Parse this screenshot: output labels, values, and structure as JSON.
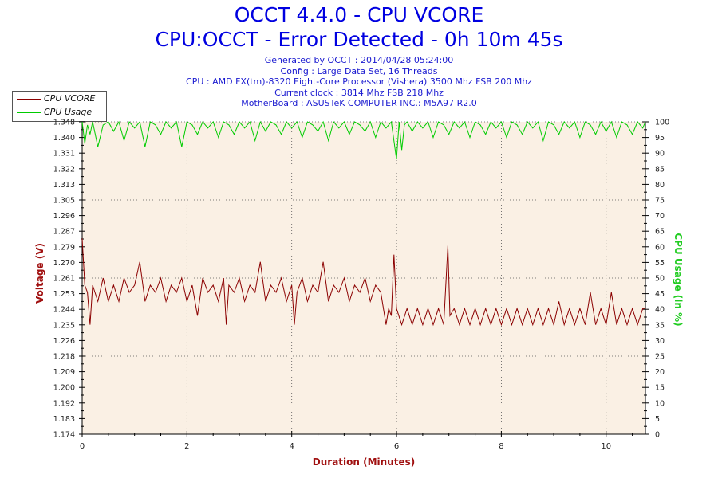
{
  "header": {
    "title": "OCCT 4.4.0 - CPU VCORE",
    "subtitle": "CPU:OCCT - Error Detected - 0h 10m 45s",
    "info_lines": [
      "Generated by OCCT : 2014/04/28 05:24:00",
      "Config : Large Data Set, 16 Threads",
      "CPU : AMD FX(tm)-8320 Eight-Core Processor (Vishera) 3500 Mhz FSB 200 Mhz",
      "Current clock : 3814 Mhz FSB 218 Mhz",
      "MotherBoard : ASUSTeK COMPUTER INC.: M5A97 R2.0"
    ]
  },
  "legend": {
    "items": [
      {
        "label": "CPU VCORE",
        "color": "#8b0000"
      },
      {
        "label": "CPU Usage",
        "color": "#00cc00"
      }
    ]
  },
  "colors": {
    "plot_background": "#faf0e4",
    "axis_label": "#a01010",
    "right_axis_label": "#22cc22",
    "vcore_line": "#8b0000",
    "usage_line": "#00cc00",
    "title": "#0000e0"
  },
  "chart_data": {
    "type": "line",
    "title": "OCCT 4.4.0 - CPU VCORE",
    "xlabel": "Duration (Minutes)",
    "ylabel": "Voltage (V)",
    "y2label": "CPU Usage (in %)",
    "xlim": [
      0,
      10.75
    ],
    "ylim": [
      1.174,
      1.348
    ],
    "y2lim": [
      0,
      100
    ],
    "x_ticks": [
      "0",
      "2",
      "4",
      "6",
      "8",
      "10"
    ],
    "x_tick_values": [
      0,
      2,
      4,
      6,
      8,
      10
    ],
    "y_ticks": [
      "1.174",
      "1.183",
      "1.192",
      "1.200",
      "1.209",
      "1.218",
      "1.226",
      "1.235",
      "1.244",
      "1.253",
      "1.261",
      "1.270",
      "1.279",
      "1.287",
      "1.296",
      "1.305",
      "1.313",
      "1.322",
      "1.331",
      "1.340",
      "1.348"
    ],
    "y2_ticks": [
      "0",
      "5",
      "10",
      "15",
      "20",
      "25",
      "30",
      "35",
      "40",
      "45",
      "50",
      "55",
      "60",
      "65",
      "70",
      "75",
      "80",
      "85",
      "90",
      "95",
      "100"
    ],
    "grid": true,
    "legend_position": "top-left",
    "series": [
      {
        "name": "CPU VCORE",
        "axis": "left",
        "points": [
          [
            0,
            1.283
          ],
          [
            0.05,
            1.257
          ],
          [
            0.1,
            1.253
          ],
          [
            0.15,
            1.235
          ],
          [
            0.2,
            1.257
          ],
          [
            0.3,
            1.248
          ],
          [
            0.4,
            1.261
          ],
          [
            0.5,
            1.248
          ],
          [
            0.6,
            1.257
          ],
          [
            0.7,
            1.248
          ],
          [
            0.8,
            1.261
          ],
          [
            0.9,
            1.253
          ],
          [
            1.0,
            1.257
          ],
          [
            1.1,
            1.27
          ],
          [
            1.2,
            1.248
          ],
          [
            1.3,
            1.257
          ],
          [
            1.4,
            1.253
          ],
          [
            1.5,
            1.261
          ],
          [
            1.6,
            1.248
          ],
          [
            1.7,
            1.257
          ],
          [
            1.8,
            1.253
          ],
          [
            1.9,
            1.261
          ],
          [
            2.0,
            1.248
          ],
          [
            2.1,
            1.257
          ],
          [
            2.2,
            1.24
          ],
          [
            2.3,
            1.261
          ],
          [
            2.4,
            1.253
          ],
          [
            2.5,
            1.257
          ],
          [
            2.6,
            1.248
          ],
          [
            2.7,
            1.261
          ],
          [
            2.75,
            1.235
          ],
          [
            2.8,
            1.257
          ],
          [
            2.9,
            1.253
          ],
          [
            3.0,
            1.261
          ],
          [
            3.1,
            1.248
          ],
          [
            3.2,
            1.257
          ],
          [
            3.3,
            1.253
          ],
          [
            3.4,
            1.27
          ],
          [
            3.5,
            1.248
          ],
          [
            3.6,
            1.257
          ],
          [
            3.7,
            1.253
          ],
          [
            3.8,
            1.261
          ],
          [
            3.9,
            1.248
          ],
          [
            4.0,
            1.257
          ],
          [
            4.05,
            1.235
          ],
          [
            4.1,
            1.253
          ],
          [
            4.2,
            1.261
          ],
          [
            4.3,
            1.248
          ],
          [
            4.4,
            1.257
          ],
          [
            4.5,
            1.253
          ],
          [
            4.6,
            1.27
          ],
          [
            4.7,
            1.248
          ],
          [
            4.8,
            1.257
          ],
          [
            4.9,
            1.253
          ],
          [
            5.0,
            1.261
          ],
          [
            5.1,
            1.248
          ],
          [
            5.2,
            1.257
          ],
          [
            5.3,
            1.253
          ],
          [
            5.4,
            1.261
          ],
          [
            5.5,
            1.248
          ],
          [
            5.6,
            1.257
          ],
          [
            5.7,
            1.253
          ],
          [
            5.8,
            1.235
          ],
          [
            5.85,
            1.244
          ],
          [
            5.9,
            1.24
          ],
          [
            5.95,
            1.274
          ],
          [
            6.0,
            1.244
          ],
          [
            6.1,
            1.235
          ],
          [
            6.2,
            1.244
          ],
          [
            6.3,
            1.235
          ],
          [
            6.4,
            1.244
          ],
          [
            6.5,
            1.235
          ],
          [
            6.6,
            1.244
          ],
          [
            6.7,
            1.235
          ],
          [
            6.8,
            1.244
          ],
          [
            6.9,
            1.235
          ],
          [
            6.98,
            1.279
          ],
          [
            7.02,
            1.24
          ],
          [
            7.1,
            1.244
          ],
          [
            7.2,
            1.235
          ],
          [
            7.3,
            1.244
          ],
          [
            7.4,
            1.235
          ],
          [
            7.5,
            1.244
          ],
          [
            7.6,
            1.235
          ],
          [
            7.7,
            1.244
          ],
          [
            7.8,
            1.235
          ],
          [
            7.9,
            1.244
          ],
          [
            8.0,
            1.235
          ],
          [
            8.1,
            1.244
          ],
          [
            8.2,
            1.235
          ],
          [
            8.3,
            1.244
          ],
          [
            8.4,
            1.235
          ],
          [
            8.5,
            1.244
          ],
          [
            8.6,
            1.235
          ],
          [
            8.7,
            1.244
          ],
          [
            8.8,
            1.235
          ],
          [
            8.9,
            1.244
          ],
          [
            9.0,
            1.235
          ],
          [
            9.1,
            1.248
          ],
          [
            9.2,
            1.235
          ],
          [
            9.3,
            1.244
          ],
          [
            9.4,
            1.235
          ],
          [
            9.5,
            1.244
          ],
          [
            9.6,
            1.235
          ],
          [
            9.7,
            1.253
          ],
          [
            9.8,
            1.235
          ],
          [
            9.9,
            1.244
          ],
          [
            10.0,
            1.235
          ],
          [
            10.1,
            1.253
          ],
          [
            10.2,
            1.235
          ],
          [
            10.3,
            1.244
          ],
          [
            10.4,
            1.235
          ],
          [
            10.5,
            1.244
          ],
          [
            10.6,
            1.235
          ],
          [
            10.7,
            1.244
          ],
          [
            10.75,
            1.244
          ]
        ]
      },
      {
        "name": "CPU Usage",
        "axis": "right",
        "points": [
          [
            0,
            100
          ],
          [
            0.05,
            93
          ],
          [
            0.1,
            99
          ],
          [
            0.15,
            96
          ],
          [
            0.2,
            100
          ],
          [
            0.3,
            92
          ],
          [
            0.4,
            99
          ],
          [
            0.5,
            100
          ],
          [
            0.6,
            97
          ],
          [
            0.7,
            100
          ],
          [
            0.8,
            94
          ],
          [
            0.9,
            100
          ],
          [
            1.0,
            98
          ],
          [
            1.1,
            100
          ],
          [
            1.2,
            92
          ],
          [
            1.3,
            100
          ],
          [
            1.4,
            99
          ],
          [
            1.5,
            96
          ],
          [
            1.6,
            100
          ],
          [
            1.7,
            98
          ],
          [
            1.8,
            100
          ],
          [
            1.9,
            92
          ],
          [
            2.0,
            100
          ],
          [
            2.1,
            99
          ],
          [
            2.2,
            96
          ],
          [
            2.3,
            100
          ],
          [
            2.4,
            98
          ],
          [
            2.5,
            100
          ],
          [
            2.6,
            95
          ],
          [
            2.7,
            100
          ],
          [
            2.8,
            99
          ],
          [
            2.9,
            96
          ],
          [
            3.0,
            100
          ],
          [
            3.1,
            98
          ],
          [
            3.2,
            100
          ],
          [
            3.3,
            94
          ],
          [
            3.4,
            100
          ],
          [
            3.5,
            97
          ],
          [
            3.6,
            100
          ],
          [
            3.7,
            99
          ],
          [
            3.8,
            96
          ],
          [
            3.9,
            100
          ],
          [
            4.0,
            98
          ],
          [
            4.1,
            100
          ],
          [
            4.2,
            95
          ],
          [
            4.3,
            100
          ],
          [
            4.4,
            99
          ],
          [
            4.5,
            97
          ],
          [
            4.6,
            100
          ],
          [
            4.7,
            94
          ],
          [
            4.8,
            100
          ],
          [
            4.9,
            98
          ],
          [
            5.0,
            100
          ],
          [
            5.1,
            96
          ],
          [
            5.2,
            100
          ],
          [
            5.3,
            99
          ],
          [
            5.4,
            97
          ],
          [
            5.5,
            100
          ],
          [
            5.6,
            95
          ],
          [
            5.7,
            100
          ],
          [
            5.8,
            98
          ],
          [
            5.9,
            100
          ],
          [
            6.0,
            88
          ],
          [
            6.05,
            100
          ],
          [
            6.1,
            91
          ],
          [
            6.15,
            99
          ],
          [
            6.2,
            100
          ],
          [
            6.3,
            97
          ],
          [
            6.4,
            100
          ],
          [
            6.5,
            98
          ],
          [
            6.6,
            100
          ],
          [
            6.7,
            95
          ],
          [
            6.8,
            100
          ],
          [
            6.9,
            99
          ],
          [
            7.0,
            96
          ],
          [
            7.1,
            100
          ],
          [
            7.2,
            98
          ],
          [
            7.3,
            100
          ],
          [
            7.4,
            95
          ],
          [
            7.5,
            100
          ],
          [
            7.6,
            99
          ],
          [
            7.7,
            96
          ],
          [
            7.8,
            100
          ],
          [
            7.9,
            98
          ],
          [
            8.0,
            100
          ],
          [
            8.1,
            95
          ],
          [
            8.2,
            100
          ],
          [
            8.3,
            99
          ],
          [
            8.4,
            96
          ],
          [
            8.5,
            100
          ],
          [
            8.6,
            98
          ],
          [
            8.7,
            100
          ],
          [
            8.8,
            94
          ],
          [
            8.9,
            100
          ],
          [
            9.0,
            99
          ],
          [
            9.1,
            96
          ],
          [
            9.2,
            100
          ],
          [
            9.3,
            98
          ],
          [
            9.4,
            100
          ],
          [
            9.5,
            95
          ],
          [
            9.6,
            100
          ],
          [
            9.7,
            99
          ],
          [
            9.8,
            96
          ],
          [
            9.9,
            100
          ],
          [
            10.0,
            97
          ],
          [
            10.1,
            100
          ],
          [
            10.2,
            95
          ],
          [
            10.3,
            100
          ],
          [
            10.4,
            99
          ],
          [
            10.5,
            96
          ],
          [
            10.6,
            100
          ],
          [
            10.7,
            98
          ],
          [
            10.75,
            100
          ]
        ]
      }
    ]
  }
}
